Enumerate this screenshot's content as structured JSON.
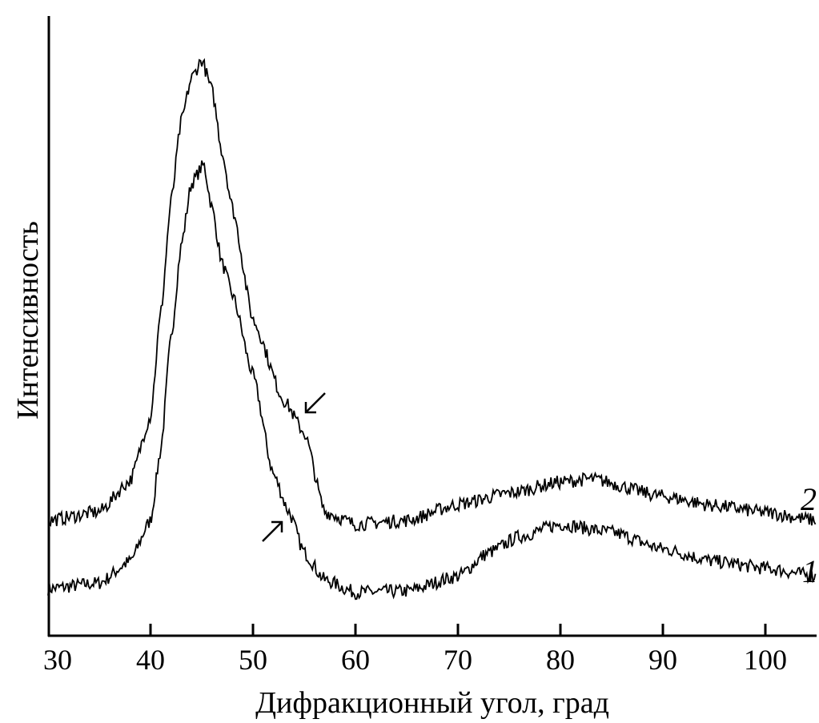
{
  "chart_data": {
    "type": "line",
    "title": "",
    "xlabel": "Дифракционный угол, град",
    "ylabel": "Интенсивность",
    "xlim": [
      30,
      105
    ],
    "ylim": [
      0,
      100
    ],
    "y_units": "arbitrary (no tick labels)",
    "x_ticks": [
      30,
      40,
      50,
      60,
      70,
      80,
      90,
      100
    ],
    "x_tick_labels": [
      "30",
      "40",
      "50",
      "60",
      "70",
      "80",
      "90",
      "100"
    ],
    "grid": false,
    "legend": "none; curves labeled at right end",
    "line_color": "#000000",
    "series": [
      {
        "name": "1",
        "x": [
          30,
          35,
          38,
          40,
          41,
          42,
          43,
          44,
          45.2,
          46,
          47,
          48,
          50,
          52,
          53.5,
          55,
          57,
          60,
          65,
          70,
          73,
          76,
          80,
          85,
          90,
          95,
          100,
          105
        ],
        "y": [
          7.6,
          8.5,
          12,
          18.6,
          30,
          48,
          63,
          73,
          76,
          69,
          60,
          55,
          42,
          26,
          20,
          13.4,
          9,
          7,
          7.2,
          9.6,
          13.4,
          16,
          18,
          16.7,
          14,
          12,
          10.9,
          9.6
        ]
      },
      {
        "name": "2",
        "x": [
          30,
          35,
          38,
          40,
          41,
          42,
          43,
          44,
          45,
          46,
          47,
          48,
          50,
          53,
          55,
          57,
          60,
          65,
          70,
          75,
          80,
          83,
          90,
          95,
          100,
          105
        ],
        "y": [
          18.6,
          20,
          25,
          35.4,
          52,
          70,
          83,
          90,
          92.9,
          88,
          78,
          69,
          51,
          38,
          32.8,
          20,
          18,
          18.6,
          21.2,
          23,
          24.8,
          25.3,
          22.5,
          21,
          19.9,
          18.6
        ]
      }
    ],
    "annotations": [
      {
        "type": "arrow",
        "direction": "down-left",
        "series": "2",
        "x": 54
      },
      {
        "type": "arrow",
        "direction": "up-right",
        "series": "1",
        "x": 53
      }
    ]
  }
}
